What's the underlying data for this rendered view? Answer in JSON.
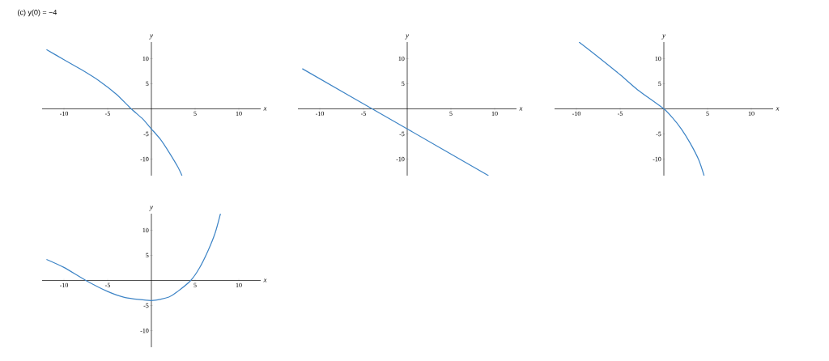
{
  "chart_data": [
    {
      "type": "line",
      "title": "(c)  y(0) = −4",
      "xlabel": "x",
      "ylabel": "y",
      "color": "#3d84c6",
      "xlim": [
        -12.5,
        12.5
      ],
      "ylim": [
        -13.3,
        13.3
      ],
      "xticks": [
        -10,
        -5,
        5,
        10
      ],
      "yticks": [
        -10,
        -5,
        5,
        10
      ],
      "x": [
        -12,
        -10,
        -8,
        -6,
        -4,
        -2.3,
        -1,
        0,
        1,
        2,
        3,
        3.5
      ],
      "values": [
        11.8,
        9.8,
        7.8,
        5.6,
        2.9,
        0,
        -2,
        -4,
        -6,
        -8.6,
        -11.5,
        -13.3
      ]
    },
    {
      "type": "line",
      "xlabel": "x",
      "ylabel": "y",
      "color": "#3d84c6",
      "xlim": [
        -12.5,
        12.5
      ],
      "ylim": [
        -13.3,
        13.3
      ],
      "xticks": [
        -10,
        -5,
        5,
        10
      ],
      "yticks": [
        -10,
        -5,
        5,
        10
      ],
      "x": [
        -12,
        0,
        9.3
      ],
      "values": [
        8,
        -4,
        -13.3
      ]
    },
    {
      "type": "line",
      "xlabel": "x",
      "ylabel": "y",
      "color": "#3d84c6",
      "xlim": [
        -12.5,
        12.5
      ],
      "ylim": [
        -13.3,
        13.3
      ],
      "xticks": [
        -10,
        -5,
        5,
        10
      ],
      "yticks": [
        -10,
        -5,
        5,
        10
      ],
      "x": [
        -9.7,
        -8,
        -5,
        -3,
        0,
        1,
        2,
        3,
        4,
        4.6
      ],
      "values": [
        13.3,
        11,
        6.8,
        3.8,
        0,
        -1.8,
        -4,
        -6.8,
        -10.2,
        -13.3
      ]
    },
    {
      "type": "line",
      "xlabel": "x",
      "ylabel": "y",
      "color": "#3d84c6",
      "xlim": [
        -12.5,
        12.5
      ],
      "ylim": [
        -13.3,
        13.3
      ],
      "xticks": [
        -10,
        -5,
        5,
        10
      ],
      "yticks": [
        -10,
        -5,
        5,
        10
      ],
      "x": [
        -12,
        -10,
        -7.5,
        -5,
        -3,
        0,
        2,
        3,
        4.5,
        5.5,
        6.5,
        7.3,
        7.9
      ],
      "values": [
        4.2,
        2.6,
        0,
        -2.2,
        -3.4,
        -4,
        -3.3,
        -2.2,
        0,
        2.5,
        6,
        9.5,
        13.3
      ]
    }
  ]
}
